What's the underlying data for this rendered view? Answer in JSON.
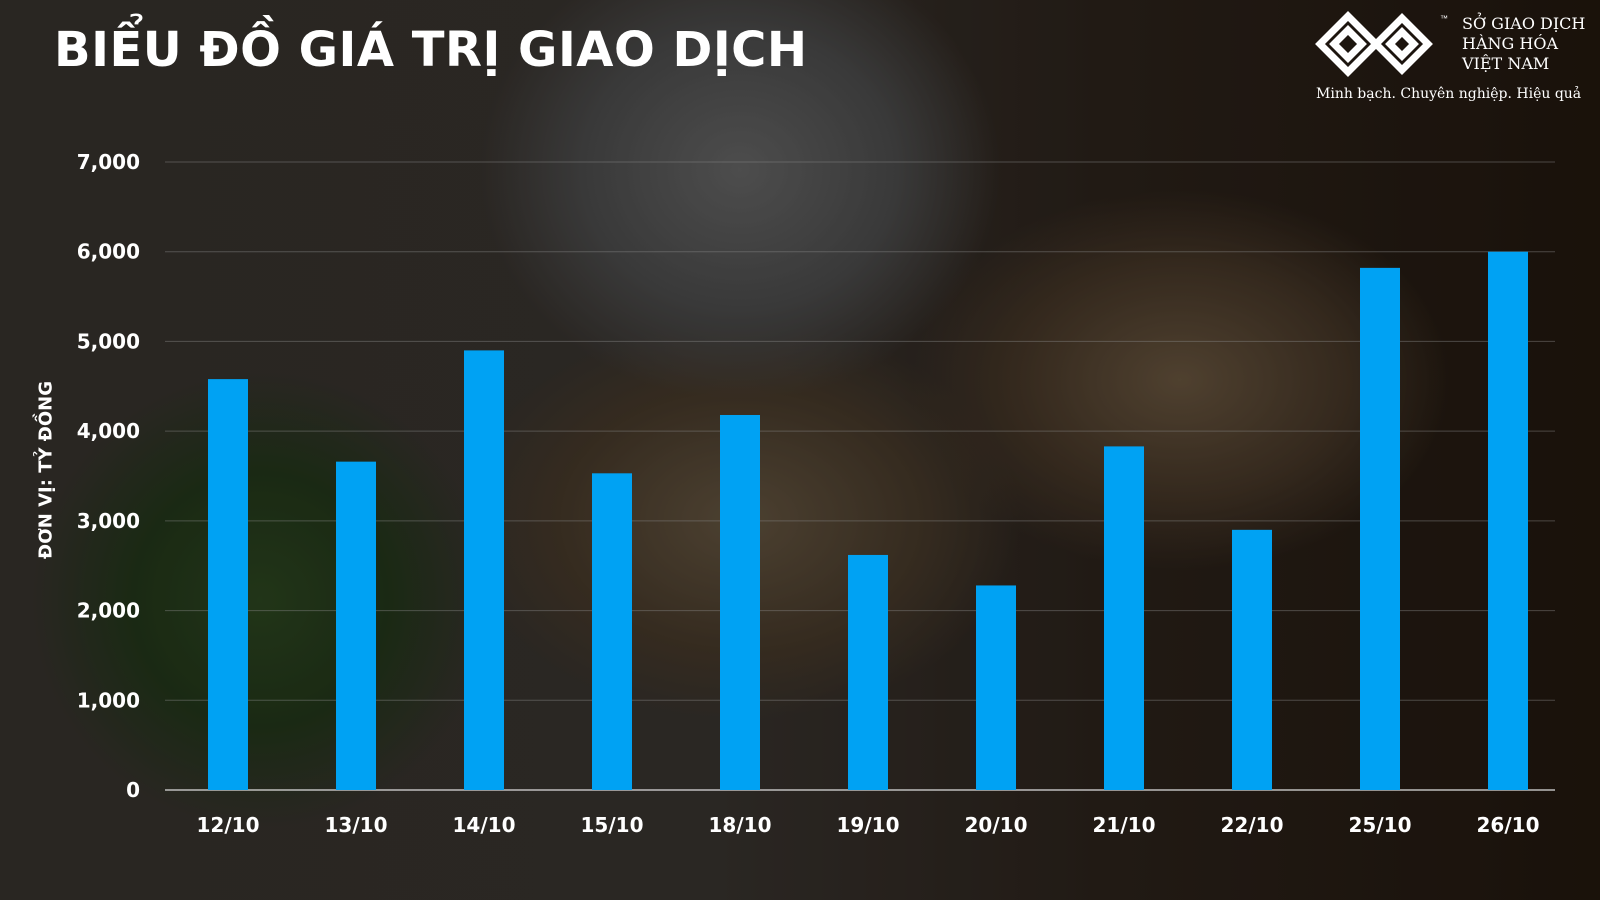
{
  "title": "BIỂU ĐỒ GIÁ TRỊ GIAO DỊCH",
  "brand": {
    "trademark": "™",
    "name_lines": [
      "SỞ GIAO DỊCH",
      "HÀNG HÓA",
      "VIỆT NAM"
    ],
    "slogan": "Minh bạch. Chuyên nghiệp. Hiệu quả"
  },
  "colors": {
    "bar": "#00a2f3",
    "gridline": "#8a8a8a",
    "text": "#ffffff"
  },
  "chart_data": {
    "type": "bar",
    "title": "BIỂU ĐỒ GIÁ TRỊ GIAO DỊCH",
    "xlabel": "",
    "ylabel": "ĐƠN VỊ: TỶ ĐỒNG",
    "categories": [
      "12/10",
      "13/10",
      "14/10",
      "15/10",
      "18/10",
      "19/10",
      "20/10",
      "21/10",
      "22/10",
      "25/10",
      "26/10"
    ],
    "values": [
      4580,
      3660,
      4900,
      3530,
      4180,
      2620,
      2280,
      3830,
      2900,
      5820,
      6000
    ],
    "ylim": [
      0,
      7000
    ],
    "yticks": [
      "0",
      "1,000",
      "2,000",
      "3,000",
      "4,000",
      "5,000",
      "6,000",
      "7,000"
    ],
    "grid": true,
    "legend": "none"
  }
}
